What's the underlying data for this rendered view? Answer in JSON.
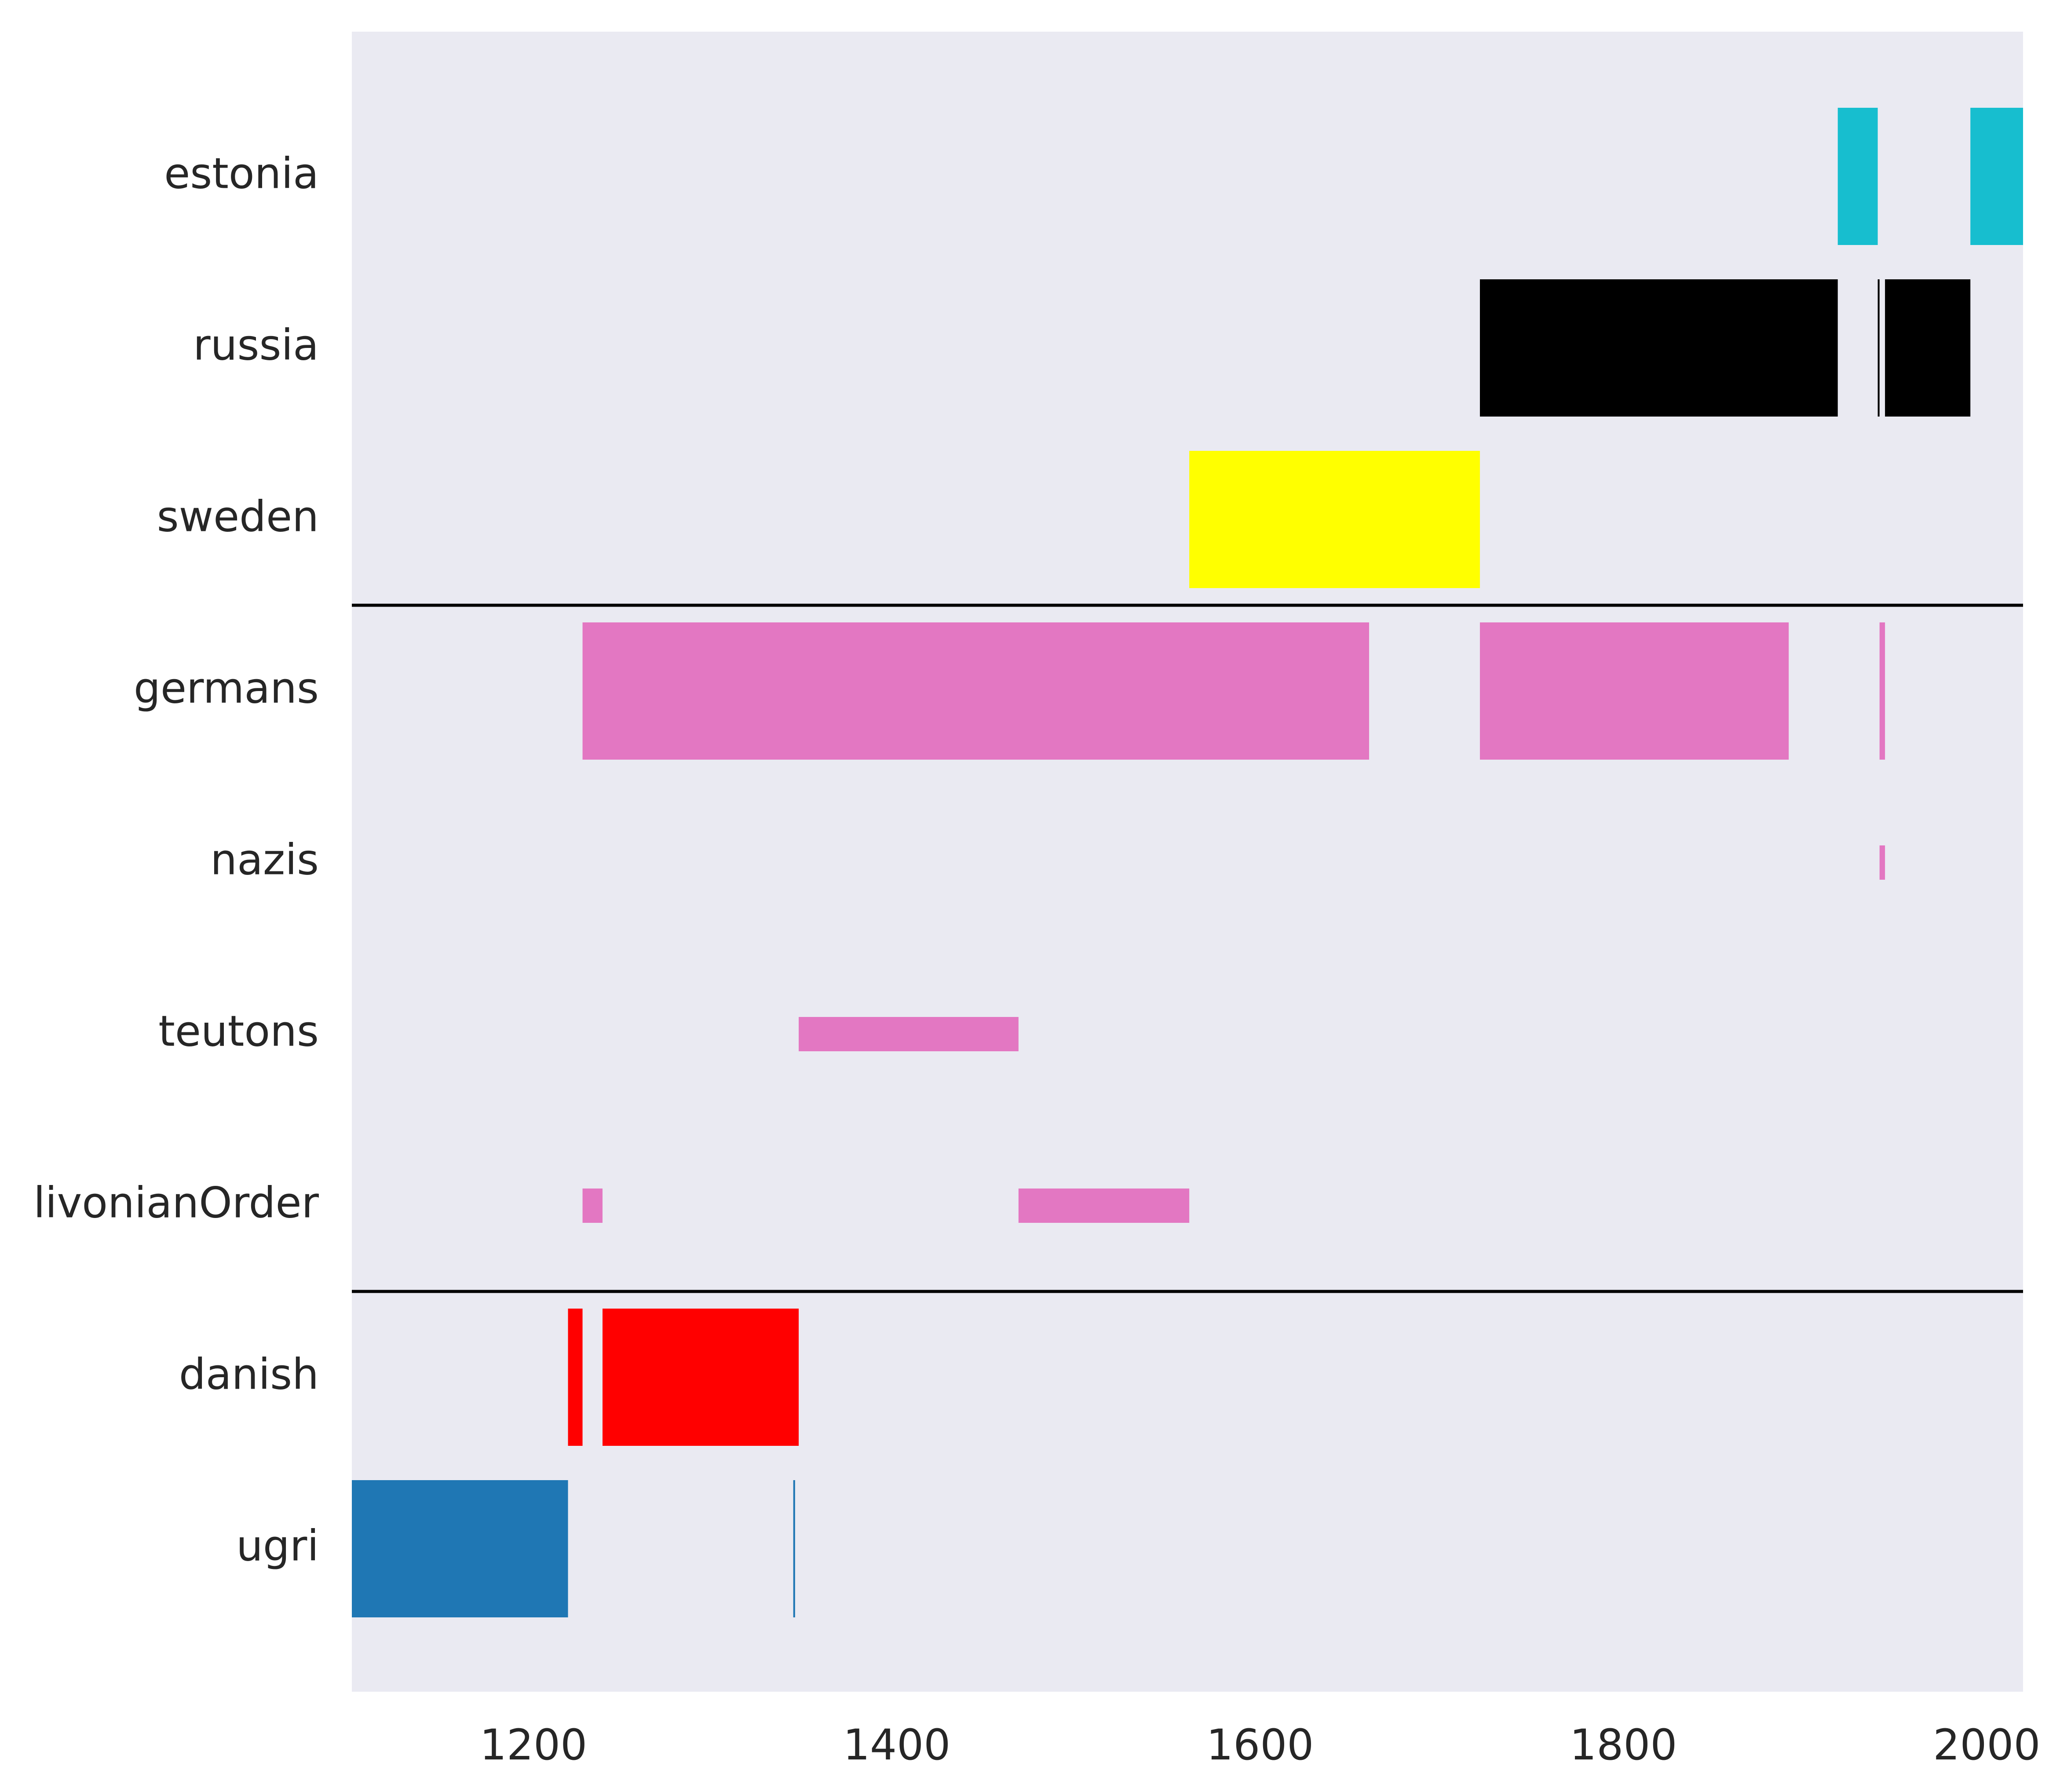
{
  "chart_data": {
    "type": "timeline",
    "title": "",
    "xlabel": "",
    "ylabel": "",
    "xlim": [
      1100,
      2020
    ],
    "xticks": [
      1200,
      1400,
      1600,
      1800,
      2000
    ],
    "grid": false,
    "background": "#eaeaf2",
    "rows": [
      {
        "name": "estonia",
        "color": "#17becf",
        "height": 1.0,
        "segments": [
          [
            1918,
            1940
          ],
          [
            1991,
            2020
          ]
        ]
      },
      {
        "name": "russia",
        "color": "#000000",
        "height": 1.0,
        "segments": [
          [
            1721,
            1918
          ],
          [
            1940,
            1941
          ],
          [
            1944,
            1991
          ]
        ]
      },
      {
        "name": "sweden",
        "color": "#ffff00",
        "height": 1.0,
        "segments": [
          [
            1561,
            1721
          ]
        ]
      },
      {
        "name": "germans",
        "color": "#e377c2",
        "height": 1.0,
        "segments": [
          [
            1227,
            1660
          ],
          [
            1721,
            1891
          ],
          [
            1941,
            1944
          ]
        ]
      },
      {
        "name": "nazis",
        "color": "#e377c2",
        "height": 0.25,
        "segments": [
          [
            1941,
            1944
          ]
        ]
      },
      {
        "name": "teutons",
        "color": "#e377c2",
        "height": 0.25,
        "segments": [
          [
            1346,
            1467
          ]
        ]
      },
      {
        "name": "livonianOrder",
        "color": "#e377c2",
        "height": 0.25,
        "segments": [
          [
            1227,
            1238
          ],
          [
            1467,
            1561
          ]
        ]
      },
      {
        "name": "danish",
        "color": "#ff0000",
        "height": 1.0,
        "segments": [
          [
            1219,
            1227
          ],
          [
            1238,
            1346
          ]
        ]
      },
      {
        "name": "ugri",
        "color": "#1f77b4",
        "height": 1.0,
        "segments": [
          [
            1100,
            1219
          ],
          [
            1343,
            1344
          ]
        ]
      }
    ],
    "separators_after": [
      "sweden",
      "livonianOrder"
    ],
    "separator_color": "#000000"
  }
}
